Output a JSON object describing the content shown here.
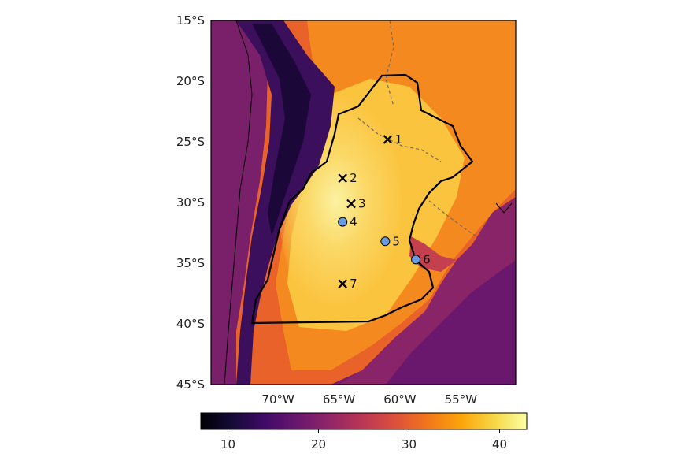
{
  "map": {
    "lat_ticks": [
      "15°S",
      "20°S",
      "25°S",
      "30°S",
      "35°S",
      "40°S",
      "45°S"
    ],
    "lon_ticks": [
      "70°W",
      "65°W",
      "60°W",
      "55°W"
    ],
    "extent": {
      "lon_min": -75.5,
      "lon_max": -50.5,
      "lat_min": -45,
      "lat_max": -15
    },
    "sites": [
      {
        "label": "1",
        "marker": "cross",
        "lon": -61.0,
        "lat": -24.8
      },
      {
        "label": "2",
        "marker": "cross",
        "lon": -64.7,
        "lat": -28.0
      },
      {
        "label": "3",
        "marker": "cross",
        "lon": -64.0,
        "lat": -30.1
      },
      {
        "label": "4",
        "marker": "circle",
        "lon": -64.7,
        "lat": -31.6
      },
      {
        "label": "5",
        "marker": "circle",
        "lon": -61.2,
        "lat": -33.2
      },
      {
        "label": "6",
        "marker": "circle",
        "lon": -58.7,
        "lat": -34.7
      },
      {
        "label": "7",
        "marker": "cross",
        "lon": -64.7,
        "lat": -36.7
      }
    ]
  },
  "colorbar": {
    "min": 7,
    "max": 43,
    "ticks": [
      "10",
      "20",
      "30",
      "40"
    ],
    "tick_values": [
      10,
      20,
      30,
      40
    ],
    "colormap": "inferno"
  },
  "colors": {
    "circle_marker": "#6a9be0",
    "border": "#000000",
    "country_dash": "#7a6a5a"
  }
}
